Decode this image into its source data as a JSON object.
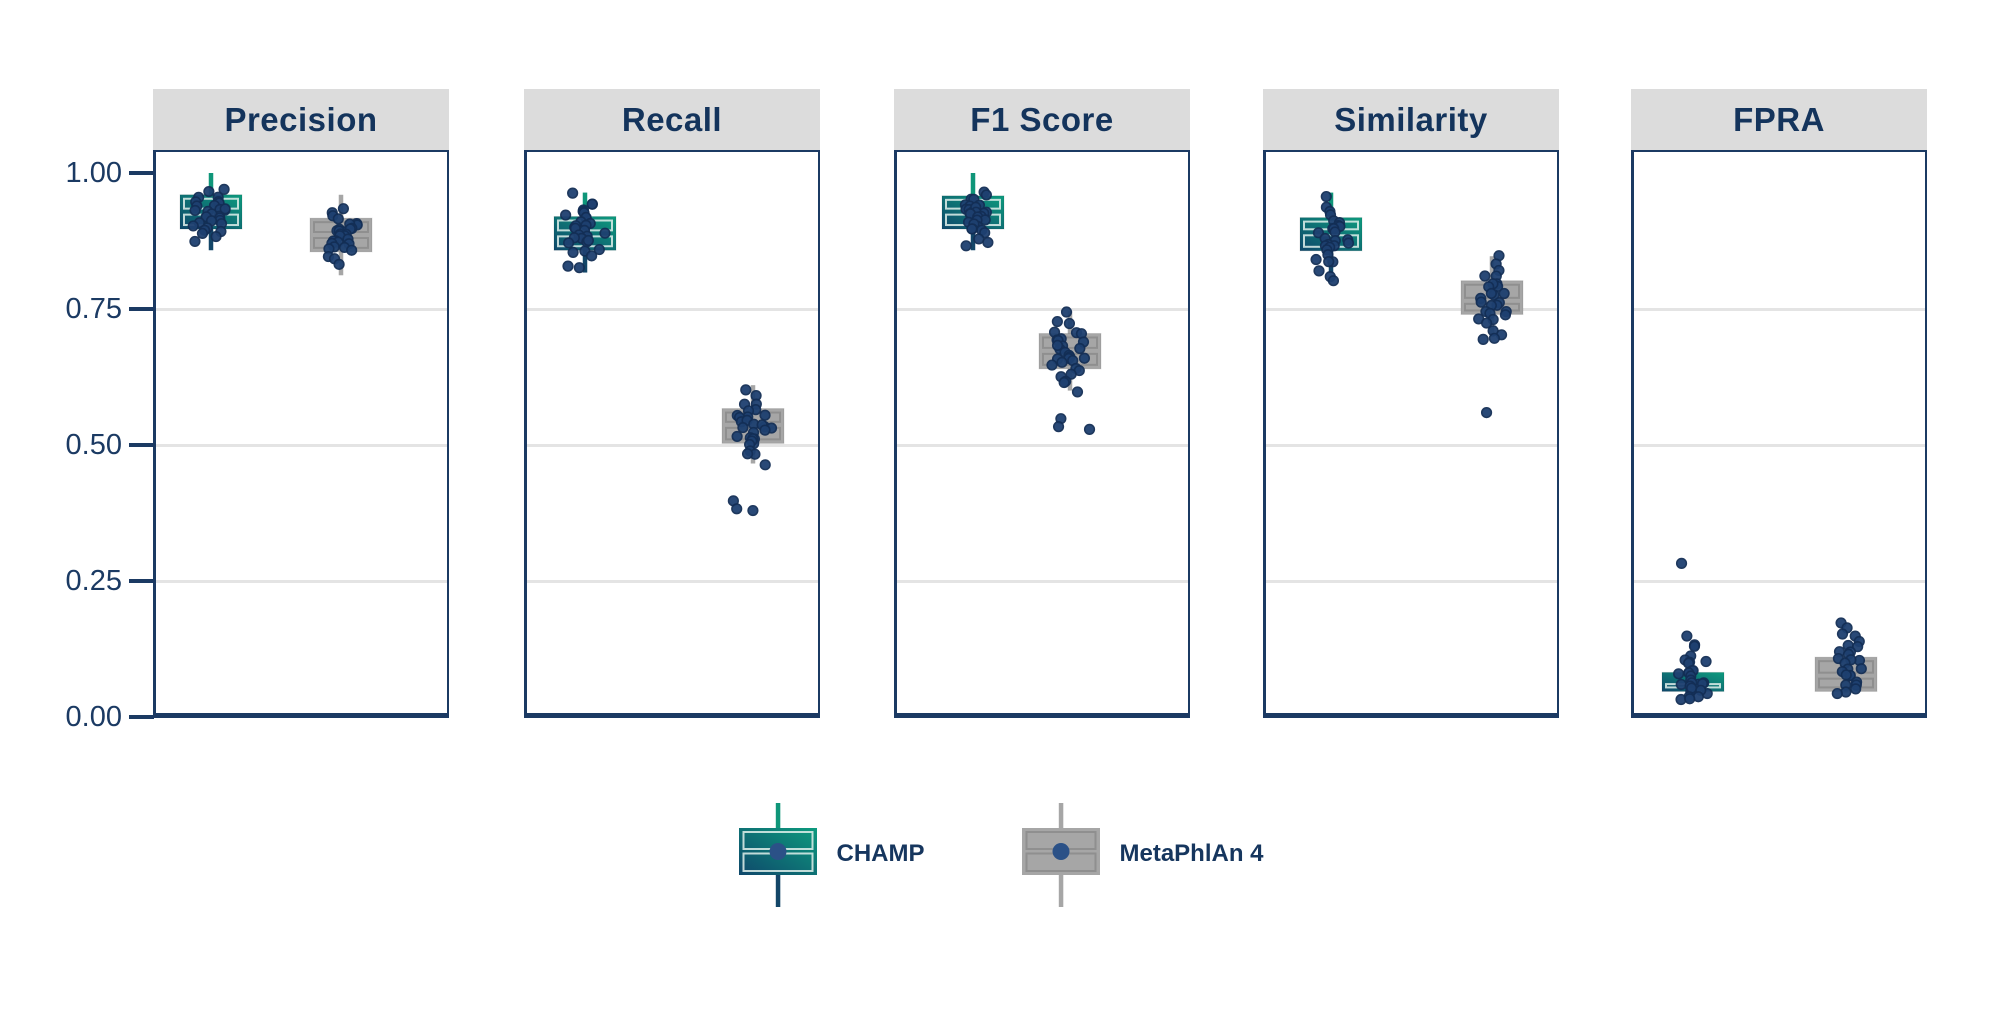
{
  "colors": {
    "navy_text": "#16365E",
    "axis_navy": "#1B3A63",
    "header_bg": "#DCDCDC",
    "gridline": "#E4E4E4",
    "champ_teal_light": "#0D9B7E",
    "champ_teal_dark": "#0F486B",
    "champ_whisker_top": "#0F9679",
    "champ_whisker_bottom": "#134668",
    "metaphlan_gray": "#A6A6A6",
    "metaphlan_inner_line": "#8F8F8F",
    "point_fill": "#1E4070",
    "point_stroke": "#132E55",
    "legend_dot": "#2B5187"
  },
  "legend": {
    "items": [
      {
        "label": "CHAMP",
        "swatch": "teal-gradient-box"
      },
      {
        "label": "MetaPhlAn 4",
        "swatch": "gray-box"
      }
    ]
  },
  "chart_data": {
    "type": "boxplot",
    "subtype": "faceted boxplots with jittered points, two tools compared per metric",
    "legend_position": "bottom-center",
    "grid": "horizontal major gridlines at 0.25, 0.50, 0.75",
    "y_axis": {
      "ticks": [
        1.0,
        0.75,
        0.5,
        0.25,
        0.0
      ],
      "tick_labels": [
        "1.00",
        "0.75",
        "0.50",
        "0.25",
        "0.00"
      ],
      "range": [
        0.0,
        1.04
      ],
      "gridlines": [
        0.75,
        0.5,
        0.25
      ]
    },
    "facets": [
      {
        "title": "Precision",
        "groups": [
          {
            "tool": "CHAMP",
            "box": {
              "low": 0.858,
              "q1": 0.897,
              "median": 0.929,
              "q3": 0.96,
              "high": 1.0
            },
            "points": [
              0.972,
              0.965,
              0.958,
              0.952,
              0.948,
              0.945,
              0.942,
              0.938,
              0.936,
              0.934,
              0.932,
              0.93,
              0.928,
              0.926,
              0.924,
              0.922,
              0.92,
              0.918,
              0.916,
              0.914,
              0.912,
              0.91,
              0.906,
              0.903,
              0.9,
              0.897,
              0.893,
              0.888,
              0.882,
              0.872
            ]
          },
          {
            "tool": "MetaPhlAn 4",
            "box": {
              "low": 0.812,
              "q1": 0.855,
              "median": 0.886,
              "q3": 0.917,
              "high": 0.96
            },
            "points": [
              0.93,
              0.922,
              0.916,
              0.912,
              0.908,
              0.905,
              0.902,
              0.9,
              0.898,
              0.896,
              0.894,
              0.892,
              0.89,
              0.888,
              0.886,
              0.884,
              0.882,
              0.88,
              0.878,
              0.876,
              0.874,
              0.872,
              0.869,
              0.866,
              0.862,
              0.858,
              0.853,
              0.848,
              0.84,
              0.831
            ]
          }
        ]
      },
      {
        "title": "Recall",
        "groups": [
          {
            "tool": "CHAMP",
            "box": {
              "low": 0.817,
              "q1": 0.858,
              "median": 0.889,
              "q3": 0.92,
              "high": 0.964
            },
            "points": [
              0.958,
              0.948,
              0.94,
              0.934,
              0.93,
              0.926,
              0.922,
              0.918,
              0.915,
              0.912,
              0.909,
              0.906,
              0.903,
              0.9,
              0.897,
              0.894,
              0.891,
              0.888,
              0.885,
              0.882,
              0.879,
              0.876,
              0.872,
              0.868,
              0.863,
              0.858,
              0.852,
              0.845,
              0.833,
              0.822
            ]
          },
          {
            "tool": "MetaPhlAn 4",
            "box": {
              "low": 0.466,
              "q1": 0.503,
              "median": 0.537,
              "q3": 0.567,
              "high": 0.61
            },
            "points": [
              0.605,
              0.588,
              0.578,
              0.57,
              0.565,
              0.56,
              0.556,
              0.552,
              0.549,
              0.546,
              0.543,
              0.54,
              0.537,
              0.535,
              0.532,
              0.53,
              0.527,
              0.524,
              0.521,
              0.518,
              0.515,
              0.512,
              0.509,
              0.506,
              0.502,
              0.498,
              0.493,
              0.487,
              0.479,
              0.469,
              0.401,
              0.386,
              0.376
            ]
          }
        ]
      },
      {
        "title": "F1 Score",
        "groups": [
          {
            "tool": "CHAMP",
            "box": {
              "low": 0.858,
              "q1": 0.897,
              "median": 0.929,
              "q3": 0.958,
              "high": 1.0
            },
            "points": [
              0.968,
              0.96,
              0.954,
              0.95,
              0.946,
              0.943,
              0.94,
              0.938,
              0.936,
              0.934,
              0.932,
              0.93,
              0.928,
              0.926,
              0.924,
              0.922,
              0.92,
              0.917,
              0.914,
              0.911,
              0.908,
              0.905,
              0.902,
              0.898,
              0.894,
              0.89,
              0.885,
              0.88,
              0.874,
              0.866
            ]
          },
          {
            "tool": "MetaPhlAn 4",
            "box": {
              "low": 0.6,
              "q1": 0.64,
              "median": 0.673,
              "q3": 0.705,
              "high": 0.746
            },
            "points": [
              0.744,
              0.73,
              0.72,
              0.712,
              0.706,
              0.701,
              0.697,
              0.693,
              0.69,
              0.687,
              0.684,
              0.681,
              0.678,
              0.675,
              0.672,
              0.669,
              0.666,
              0.663,
              0.66,
              0.657,
              0.654,
              0.65,
              0.646,
              0.642,
              0.638,
              0.633,
              0.628,
              0.622,
              0.612,
              0.601,
              0.548,
              0.531,
              0.524
            ]
          }
        ]
      },
      {
        "title": "Similarity",
        "groups": [
          {
            "tool": "CHAMP",
            "box": {
              "low": 0.816,
              "q1": 0.857,
              "median": 0.891,
              "q3": 0.918,
              "high": 0.964
            },
            "points": [
              0.952,
              0.94,
              0.93,
              0.922,
              0.916,
              0.911,
              0.906,
              0.902,
              0.898,
              0.894,
              0.89,
              0.887,
              0.884,
              0.881,
              0.878,
              0.875,
              0.872,
              0.868,
              0.864,
              0.86,
              0.856,
              0.851,
              0.846,
              0.84,
              0.833,
              0.824,
              0.813,
              0.802
            ]
          },
          {
            "tool": "MetaPhlAn 4",
            "box": {
              "low": 0.699,
              "q1": 0.74,
              "median": 0.765,
              "q3": 0.802,
              "high": 0.847
            },
            "points": [
              0.845,
              0.832,
              0.822,
              0.814,
              0.807,
              0.801,
              0.796,
              0.791,
              0.786,
              0.782,
              0.778,
              0.774,
              0.77,
              0.766,
              0.762,
              0.758,
              0.754,
              0.75,
              0.746,
              0.742,
              0.737,
              0.732,
              0.727,
              0.721,
              0.715,
              0.708,
              0.7,
              0.69,
              0.558
            ]
          }
        ]
      },
      {
        "title": "FPRA",
        "groups": [
          {
            "tool": "CHAMP",
            "box": {
              "low": 0.045,
              "q1": 0.047,
              "median": 0.066,
              "q3": 0.082,
              "high": 0.085
            },
            "points": [
              0.283,
              0.152,
              0.138,
              0.126,
              0.117,
              0.11,
              0.104,
              0.099,
              0.094,
              0.09,
              0.086,
              0.082,
              0.079,
              0.076,
              0.073,
              0.07,
              0.067,
              0.064,
              0.061,
              0.058,
              0.056,
              0.054,
              0.051,
              0.049,
              0.047,
              0.044,
              0.042,
              0.039,
              0.036,
              0.032
            ]
          },
          {
            "tool": "MetaPhlAn 4",
            "box": {
              "low": 0.045,
              "q1": 0.047,
              "median": 0.076,
              "q3": 0.11,
              "high": 0.112
            },
            "points": [
              0.174,
              0.165,
              0.157,
              0.15,
              0.143,
              0.136,
              0.13,
              0.124,
              0.119,
              0.114,
              0.109,
              0.104,
              0.1,
              0.096,
              0.092,
              0.088,
              0.084,
              0.08,
              0.076,
              0.072,
              0.068,
              0.063,
              0.058,
              0.053,
              0.048,
              0.042
            ]
          }
        ]
      }
    ]
  }
}
